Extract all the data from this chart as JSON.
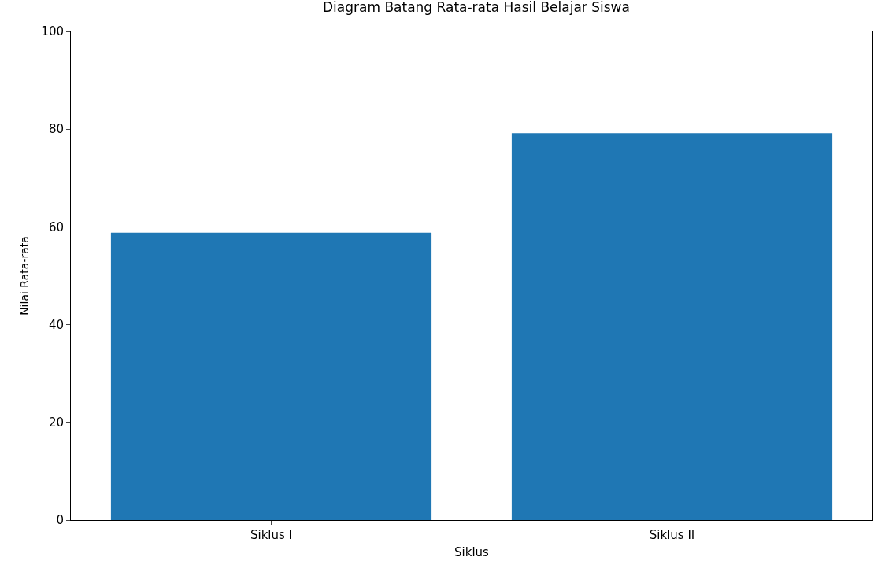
{
  "chart_data": {
    "type": "bar",
    "title": "Diagram Batang Rata-rata Hasil Belajar Siswa",
    "xlabel": "Siklus",
    "ylabel": "Nilai Rata-rata",
    "categories": [
      "Siklus I",
      "Siklus II"
    ],
    "values": [
      58.8,
      79.2
    ],
    "color": "#1f77b4",
    "ylim": [
      0,
      100
    ],
    "yticks": [
      0,
      20,
      40,
      60,
      80,
      100
    ],
    "grid": false
  }
}
